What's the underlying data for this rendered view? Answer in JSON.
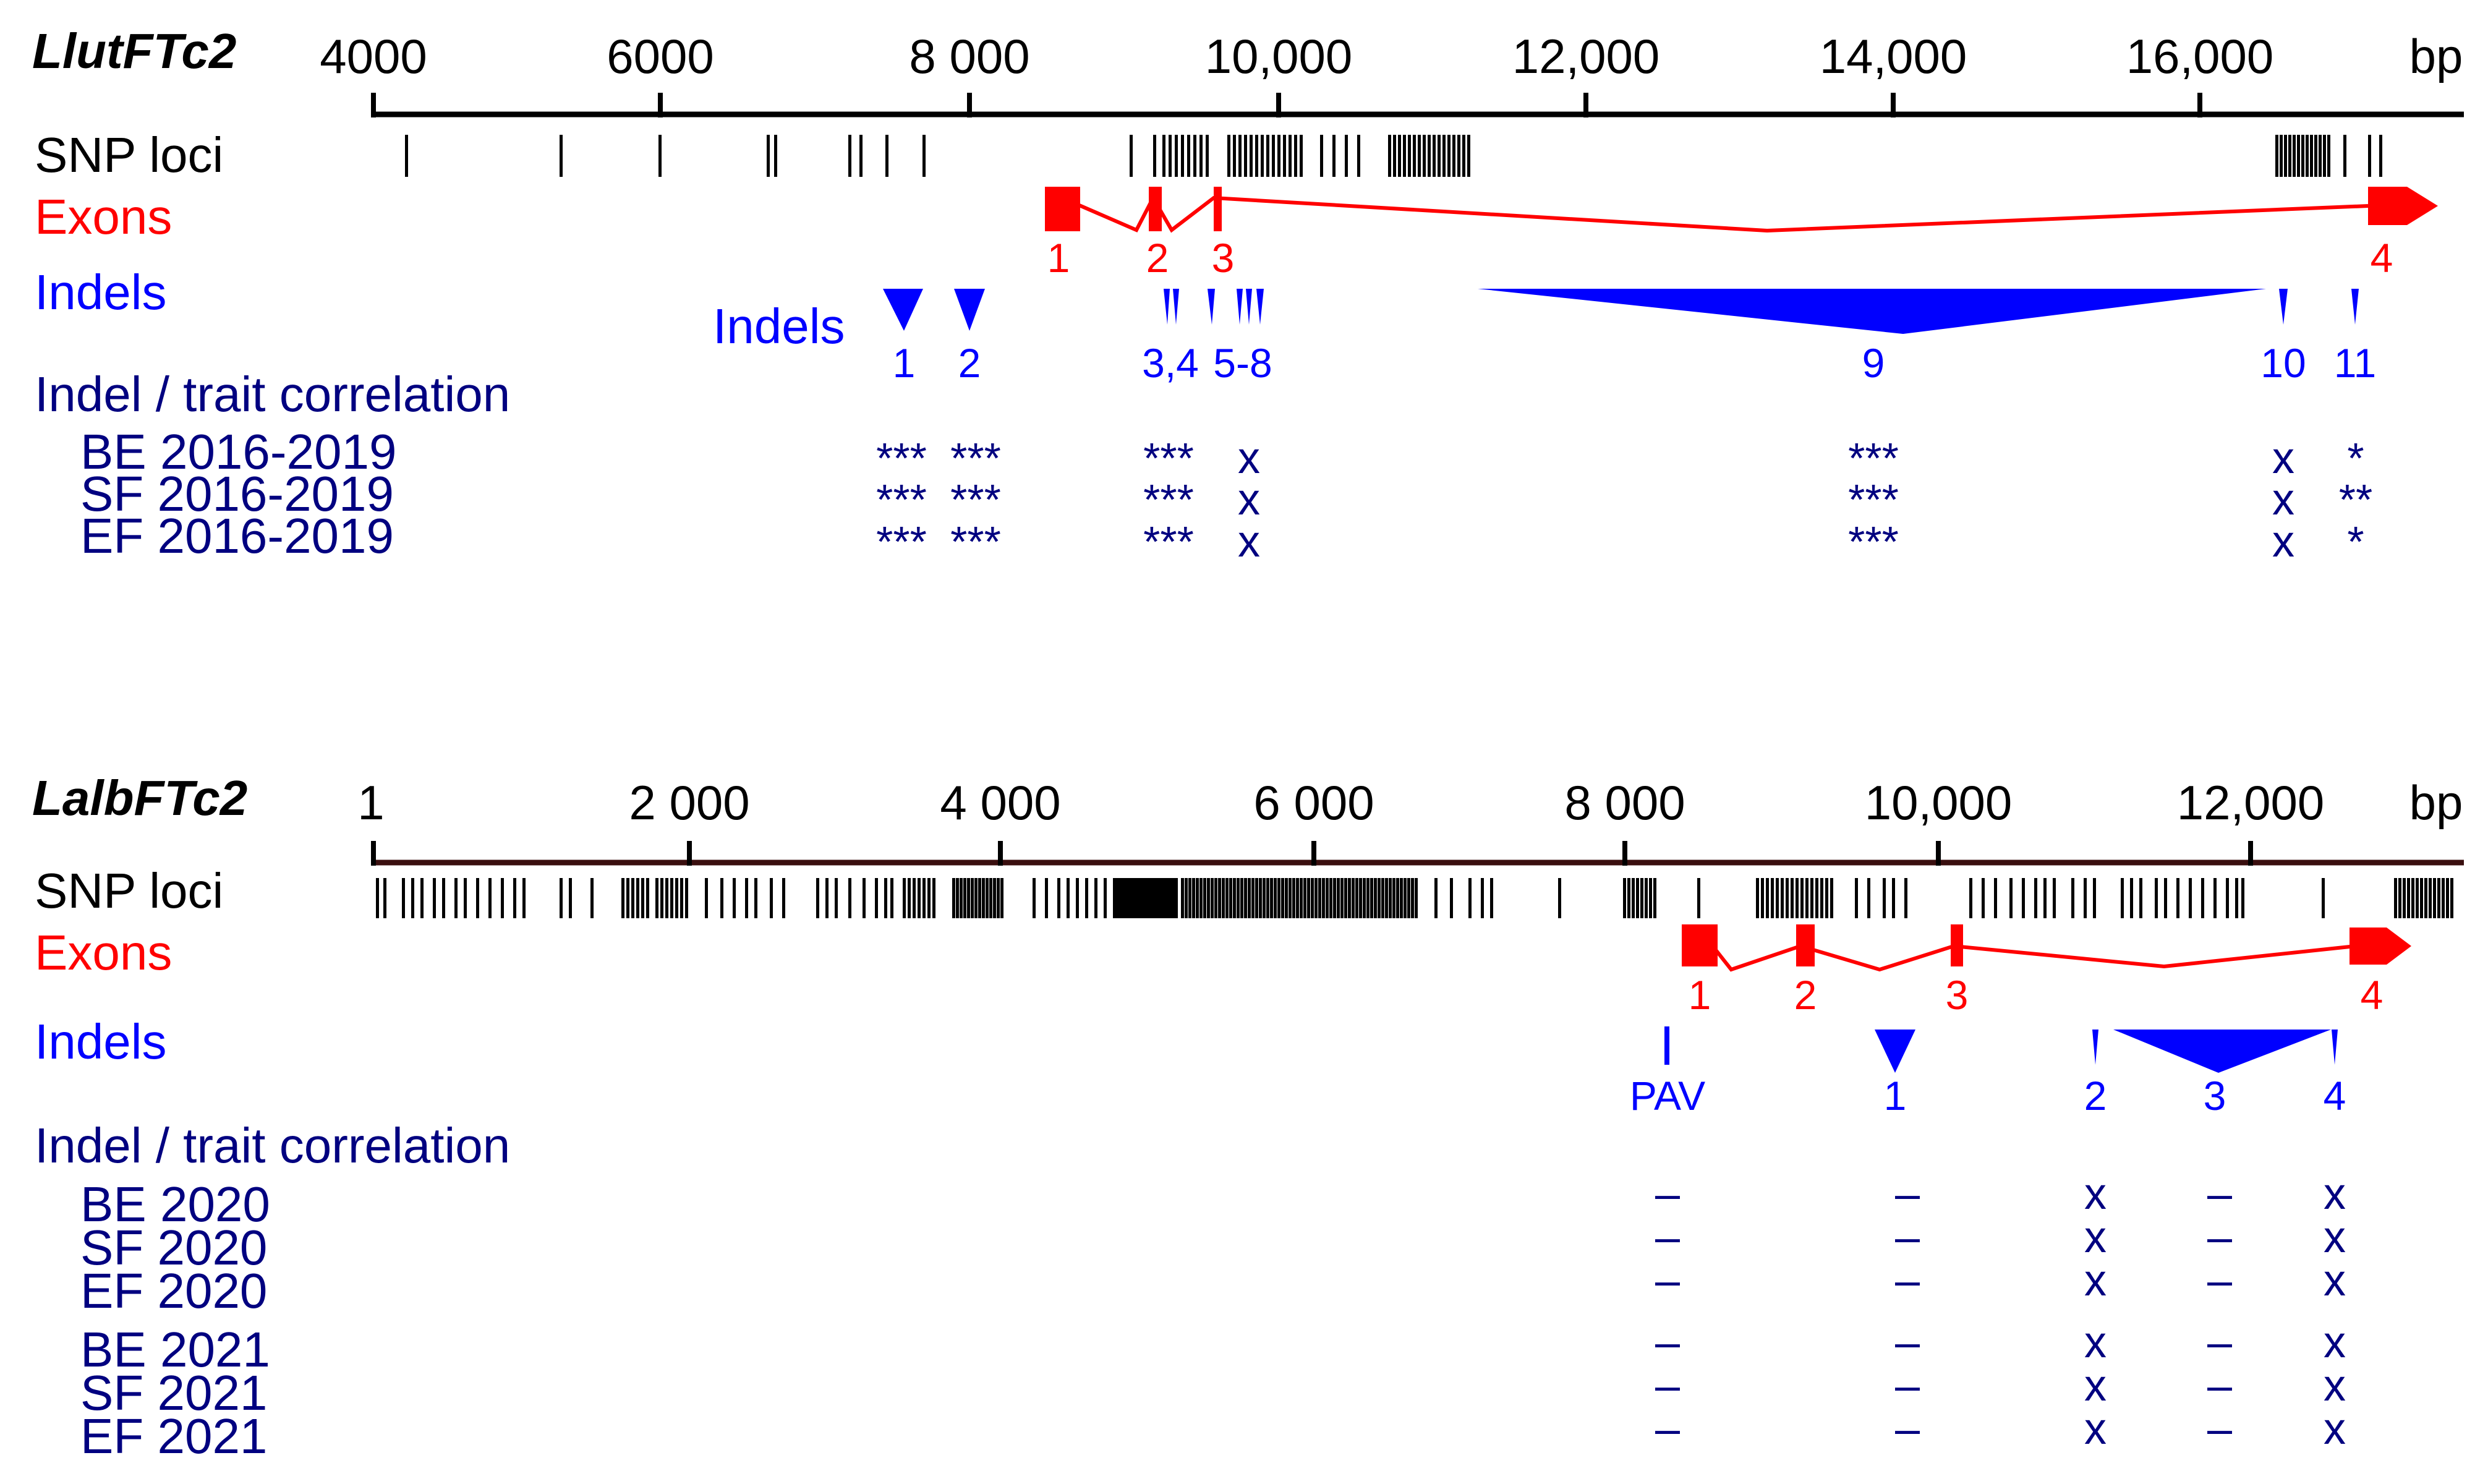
{
  "colors": {
    "black": "#000000",
    "red": "#ff0000",
    "blue": "#0000ff",
    "navy": "#000080",
    "axis_brown": "#3a0f0f"
  },
  "panel1": {
    "gene": "LlutFTc2",
    "ticks": [
      "4000",
      "6000",
      "8 000",
      "10,000",
      "12,000",
      "14,000",
      "16,000",
      "bp"
    ],
    "labels": {
      "snp": "SNP loci",
      "exons": "Exons",
      "indels": "Indels",
      "indels_inline": "Indels",
      "corr": "Indel / trait correlation"
    },
    "rows": [
      "BE 2016-2019",
      "SF 2016-2019",
      "EF 2016-2019"
    ],
    "exon_numbers": [
      "1",
      "2",
      "3",
      "4"
    ],
    "indel_numbers": [
      "1",
      "2",
      "3,4",
      "5-8",
      "9",
      "10",
      "11"
    ],
    "correlation": [
      [
        "***",
        "***",
        "***",
        "x",
        "***",
        "x",
        "*"
      ],
      [
        "***",
        "***",
        "***",
        "x",
        "***",
        "x",
        "**"
      ],
      [
        "***",
        "***",
        "***",
        "x",
        "***",
        "x",
        "*"
      ]
    ]
  },
  "panel2": {
    "gene": "LalbFTc2",
    "ticks": [
      "1",
      "2 000",
      "4 000",
      "6 000",
      "8 000",
      "10,000",
      "12,000",
      "bp"
    ],
    "labels": {
      "snp": "SNP loci",
      "exons": "Exons",
      "indels": "Indels",
      "corr": "Indel / trait correlation"
    },
    "rows": [
      "BE 2020",
      "SF 2020",
      "EF 2020",
      "BE 2021",
      "SF 2021",
      "EF 2021"
    ],
    "exon_numbers": [
      "1",
      "2",
      "3",
      "4"
    ],
    "indel_numbers": [
      "PAV",
      "1",
      "2",
      "3",
      "4"
    ],
    "correlation": [
      [
        "–",
        "–",
        "x",
        "–",
        "x"
      ],
      [
        "–",
        "–",
        "x",
        "–",
        "x"
      ],
      [
        "–",
        "–",
        "x",
        "–",
        "x"
      ],
      [
        "–",
        "–",
        "x",
        "–",
        "x"
      ],
      [
        "–",
        "–",
        "x",
        "–",
        "x"
      ],
      [
        "–",
        "–",
        "x",
        "–",
        "x"
      ]
    ]
  }
}
